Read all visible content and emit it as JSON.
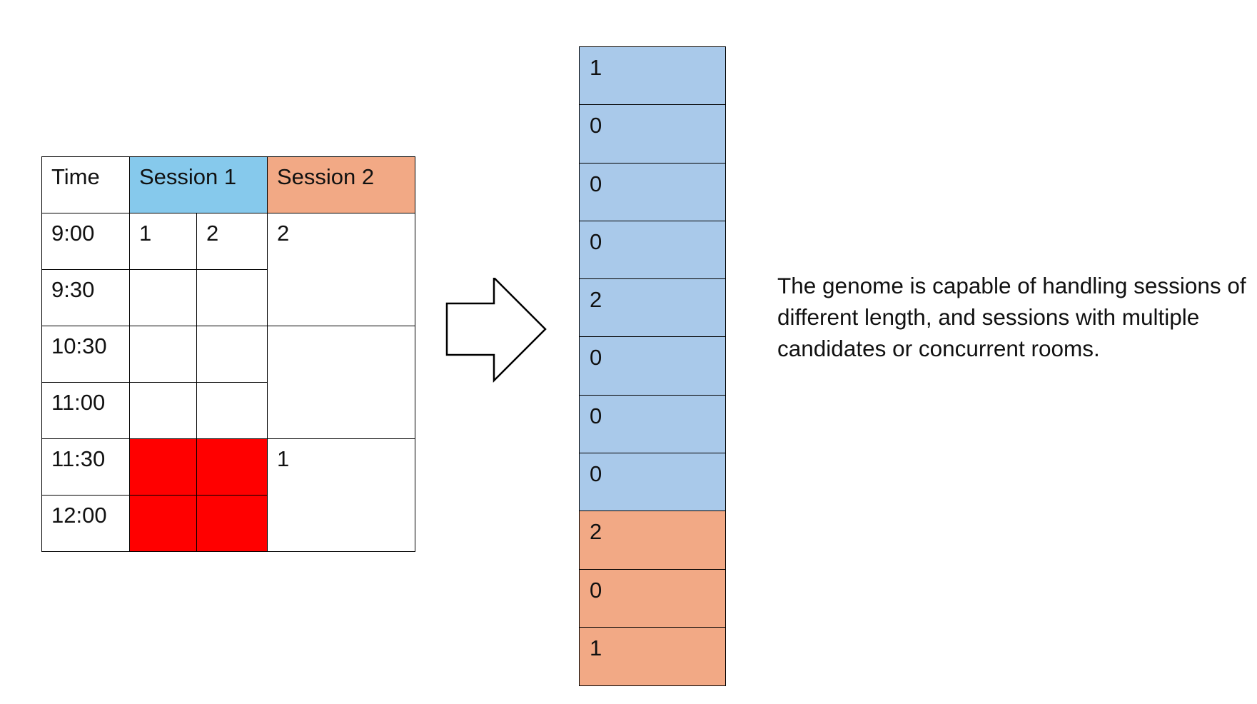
{
  "timetable": {
    "headers": {
      "time": "Time",
      "session1": "Session 1",
      "session2": "Session 2"
    },
    "times": [
      "9:00",
      "9:30",
      "10:30",
      "11:00",
      "11:30",
      "12:00"
    ],
    "session1_values": {
      "r0c1": "1",
      "r0c2": "2"
    },
    "session2_values": {
      "block1": "2",
      "block3": "1"
    },
    "blocked_color": "#ff0000"
  },
  "genome": {
    "cells": [
      {
        "value": "1",
        "group": "session1"
      },
      {
        "value": "0",
        "group": "session1"
      },
      {
        "value": "0",
        "group": "session1"
      },
      {
        "value": "0",
        "group": "session1"
      },
      {
        "value": "2",
        "group": "session1"
      },
      {
        "value": "0",
        "group": "session1"
      },
      {
        "value": "0",
        "group": "session1"
      },
      {
        "value": "0",
        "group": "session1"
      },
      {
        "value": "2",
        "group": "session2"
      },
      {
        "value": "0",
        "group": "session2"
      },
      {
        "value": "1",
        "group": "session2"
      }
    ],
    "colors": {
      "session1": "#a9c9ea",
      "session2": "#f2a985"
    }
  },
  "caption": "The genome is capable of handling sessions of different length, and sessions with multiple candidates or concurrent rooms."
}
